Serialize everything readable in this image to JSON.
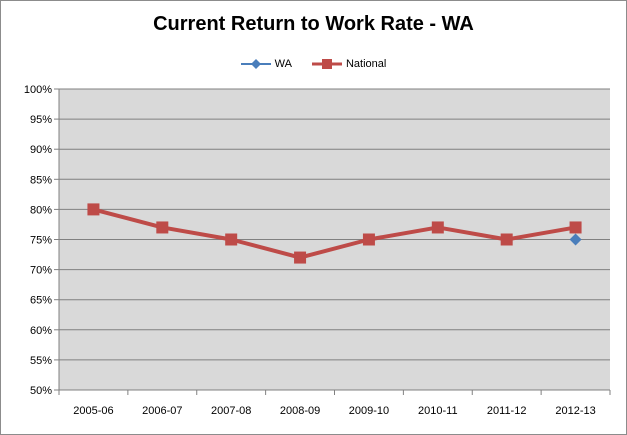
{
  "chart_data": {
    "type": "line",
    "title": "Current Return to Work Rate - WA",
    "categories": [
      "2005-06",
      "2006-07",
      "2007-08",
      "2008-09",
      "2009-10",
      "2010-11",
      "2011-12",
      "2012-13"
    ],
    "series": [
      {
        "name": "WA",
        "color": "#4a7ebb",
        "marker": "diamond",
        "values": [
          null,
          null,
          null,
          null,
          null,
          null,
          null,
          75
        ]
      },
      {
        "name": "National",
        "color": "#be4b48",
        "marker": "square",
        "values": [
          80,
          77,
          75,
          72,
          75,
          77,
          75,
          77
        ]
      }
    ],
    "ylim": [
      50,
      100
    ],
    "ystep": 5,
    "ytick_labels": [
      "50%",
      "55%",
      "60%",
      "65%",
      "70%",
      "75%",
      "80%",
      "85%",
      "90%",
      "95%",
      "100%"
    ],
    "grid": true,
    "legend_position": "top"
  }
}
